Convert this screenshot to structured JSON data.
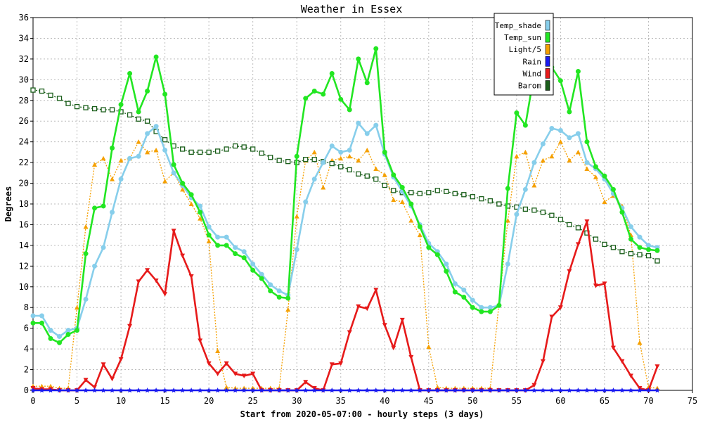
{
  "chart_data": {
    "type": "line",
    "title": "Weather in Essex",
    "xlabel": "Start from 2020-05-07:00 - hourly steps (3 days)",
    "ylabel": "Degrees",
    "xlim": [
      0,
      75
    ],
    "ylim": [
      0,
      36
    ],
    "x_ticks": [
      0,
      5,
      10,
      15,
      20,
      25,
      30,
      35,
      40,
      45,
      50,
      55,
      60,
      65,
      70,
      75
    ],
    "y_ticks": [
      0,
      2,
      4,
      6,
      8,
      10,
      12,
      14,
      16,
      18,
      20,
      22,
      24,
      26,
      28,
      30,
      32,
      34,
      36
    ],
    "grid": true,
    "legend_position": "top-right",
    "x": [
      0,
      1,
      2,
      3,
      4,
      5,
      6,
      7,
      8,
      9,
      10,
      11,
      12,
      13,
      14,
      15,
      16,
      17,
      18,
      19,
      20,
      21,
      22,
      23,
      24,
      25,
      26,
      27,
      28,
      29,
      30,
      31,
      32,
      33,
      34,
      35,
      36,
      37,
      38,
      39,
      40,
      41,
      42,
      43,
      44,
      45,
      46,
      47,
      48,
      49,
      50,
      51,
      52,
      53,
      54,
      55,
      56,
      57,
      58,
      59,
      60,
      61,
      62,
      63,
      64,
      65,
      66,
      67,
      68,
      69,
      70,
      71
    ],
    "series": [
      {
        "name": "Temp_shade",
        "color": "#87ceeb",
        "marker": "circle",
        "style": "solid",
        "values": [
          7.2,
          7.2,
          5.8,
          5.2,
          5.8,
          6.0,
          8.8,
          12.0,
          13.8,
          17.2,
          20.4,
          22.4,
          22.6,
          24.8,
          25.5,
          23.2,
          21.0,
          19.8,
          18.6,
          17.8,
          15.8,
          14.8,
          14.8,
          13.8,
          13.4,
          12.2,
          11.2,
          10.2,
          9.6,
          9.2,
          13.6,
          18.2,
          20.4,
          22.0,
          23.6,
          23.0,
          23.2,
          25.8,
          24.8,
          25.6,
          22.8,
          20.6,
          19.2,
          17.8,
          16.0,
          14.2,
          13.4,
          12.2,
          10.3,
          9.7,
          8.7,
          8.0,
          8.0,
          8.2,
          12.2,
          17.0,
          19.4,
          22.0,
          23.8,
          25.3,
          25.1,
          24.4,
          24.8,
          22.0,
          21.4,
          20.4,
          19.0,
          17.6,
          15.8,
          14.8,
          14.0,
          13.8
        ]
      },
      {
        "name": "Temp_sun",
        "color": "#22e622",
        "marker": "circle",
        "style": "solid",
        "values": [
          6.5,
          6.5,
          5.0,
          4.6,
          5.4,
          5.8,
          13.2,
          17.6,
          17.8,
          23.4,
          27.6,
          30.6,
          26.9,
          28.9,
          32.2,
          28.6,
          21.8,
          20.0,
          18.9,
          17.2,
          15.0,
          14.0,
          14.0,
          13.2,
          12.8,
          11.6,
          10.8,
          9.6,
          9.0,
          8.9,
          22.6,
          28.2,
          28.9,
          28.6,
          30.6,
          28.1,
          27.1,
          32.0,
          29.7,
          33.0,
          23.0,
          20.8,
          19.6,
          18.0,
          15.8,
          13.8,
          13.1,
          11.5,
          9.5,
          9.0,
          8.0,
          7.6,
          7.6,
          8.2,
          19.5,
          26.8,
          25.6,
          30.6,
          31.6,
          31.2,
          29.9,
          26.9,
          30.8,
          24.0,
          21.6,
          20.7,
          19.4,
          17.2,
          14.6,
          13.8,
          13.6,
          13.5
        ]
      },
      {
        "name": "Light/5",
        "color": "#f5a000",
        "marker": "triangle",
        "style": "dotted",
        "values": [
          0.4,
          0.4,
          0.4,
          0.2,
          0.2,
          8.0,
          15.8,
          21.8,
          22.4,
          20.4,
          22.2,
          22.4,
          24.0,
          23.0,
          23.2,
          20.2,
          21.0,
          19.4,
          18.0,
          16.6,
          14.4,
          3.8,
          0.3,
          0.2,
          0.2,
          0.2,
          0.2,
          0.2,
          0.2,
          7.8,
          16.8,
          22.2,
          23.0,
          19.6,
          22.2,
          22.4,
          22.6,
          22.2,
          23.2,
          21.4,
          20.8,
          18.4,
          18.2,
          16.4,
          15.0,
          4.2,
          0.3,
          0.2,
          0.2,
          0.2,
          0.2,
          0.2,
          0.2,
          8.4,
          16.4,
          22.6,
          23.0,
          19.8,
          22.2,
          22.6,
          24.0,
          22.2,
          23.0,
          21.4,
          20.6,
          18.2,
          18.8,
          17.8,
          15.0,
          4.6,
          0.3,
          0.2
        ]
      },
      {
        "name": "Rain",
        "color": "#1a1af0",
        "marker": "star",
        "style": "solid",
        "values": [
          0,
          0,
          0,
          0,
          0,
          0,
          0,
          0,
          0,
          0,
          0,
          0,
          0,
          0,
          0,
          0,
          0,
          0,
          0,
          0,
          0,
          0,
          0,
          0,
          0,
          0,
          0,
          0,
          0,
          0,
          0,
          0,
          0,
          0,
          0,
          0,
          0,
          0,
          0,
          0,
          0,
          0,
          0,
          0,
          0,
          0,
          0,
          0,
          0,
          0,
          0,
          0,
          0,
          0,
          0,
          0,
          0,
          0,
          0,
          0,
          0,
          0,
          0,
          0,
          0,
          0,
          0,
          0,
          0,
          0,
          0,
          0
        ]
      },
      {
        "name": "Wind",
        "color": "#e61a1a",
        "marker": "triangle-down",
        "style": "solid",
        "values": [
          0.2,
          0.1,
          0.1,
          0,
          0,
          0,
          1.0,
          0.3,
          2.5,
          1.1,
          3.0,
          6.2,
          10.5,
          11.6,
          10.6,
          9.3,
          15.4,
          13.0,
          11.0,
          4.8,
          2.6,
          1.6,
          2.6,
          1.6,
          1.4,
          1.6,
          0,
          0,
          0,
          0,
          0,
          0.8,
          0.2,
          0,
          2.5,
          2.6,
          5.6,
          8.1,
          7.9,
          9.7,
          6.3,
          4.1,
          6.8,
          3.2,
          0,
          0,
          0,
          0,
          0,
          0,
          0,
          0,
          0,
          0,
          0,
          0,
          0,
          0.5,
          2.8,
          7.1,
          8.0,
          11.5,
          14.1,
          16.3,
          10.1,
          10.3,
          4.1,
          2.8,
          1.4,
          0.2,
          0,
          2.3
        ]
      },
      {
        "name": "Barom",
        "color": "#1a5e1a",
        "marker": "square",
        "style": "dotted",
        "values": [
          29.0,
          28.9,
          28.5,
          28.2,
          27.7,
          27.4,
          27.3,
          27.2,
          27.1,
          27.1,
          26.9,
          26.6,
          26.2,
          26.0,
          25.0,
          24.2,
          23.6,
          23.3,
          23.0,
          23.0,
          23.0,
          23.1,
          23.3,
          23.6,
          23.5,
          23.3,
          22.9,
          22.5,
          22.2,
          22.1,
          22.0,
          22.3,
          22.3,
          22.1,
          21.9,
          21.6,
          21.3,
          20.9,
          20.7,
          20.4,
          19.8,
          19.3,
          19.1,
          19.1,
          19.0,
          19.1,
          19.3,
          19.2,
          19.0,
          18.9,
          18.7,
          18.5,
          18.3,
          18.0,
          17.8,
          17.7,
          17.5,
          17.4,
          17.2,
          16.9,
          16.5,
          16.0,
          15.7,
          15.2,
          14.6,
          14.1,
          13.8,
          13.4,
          13.2,
          13.1,
          13.0,
          12.5
        ]
      }
    ]
  }
}
